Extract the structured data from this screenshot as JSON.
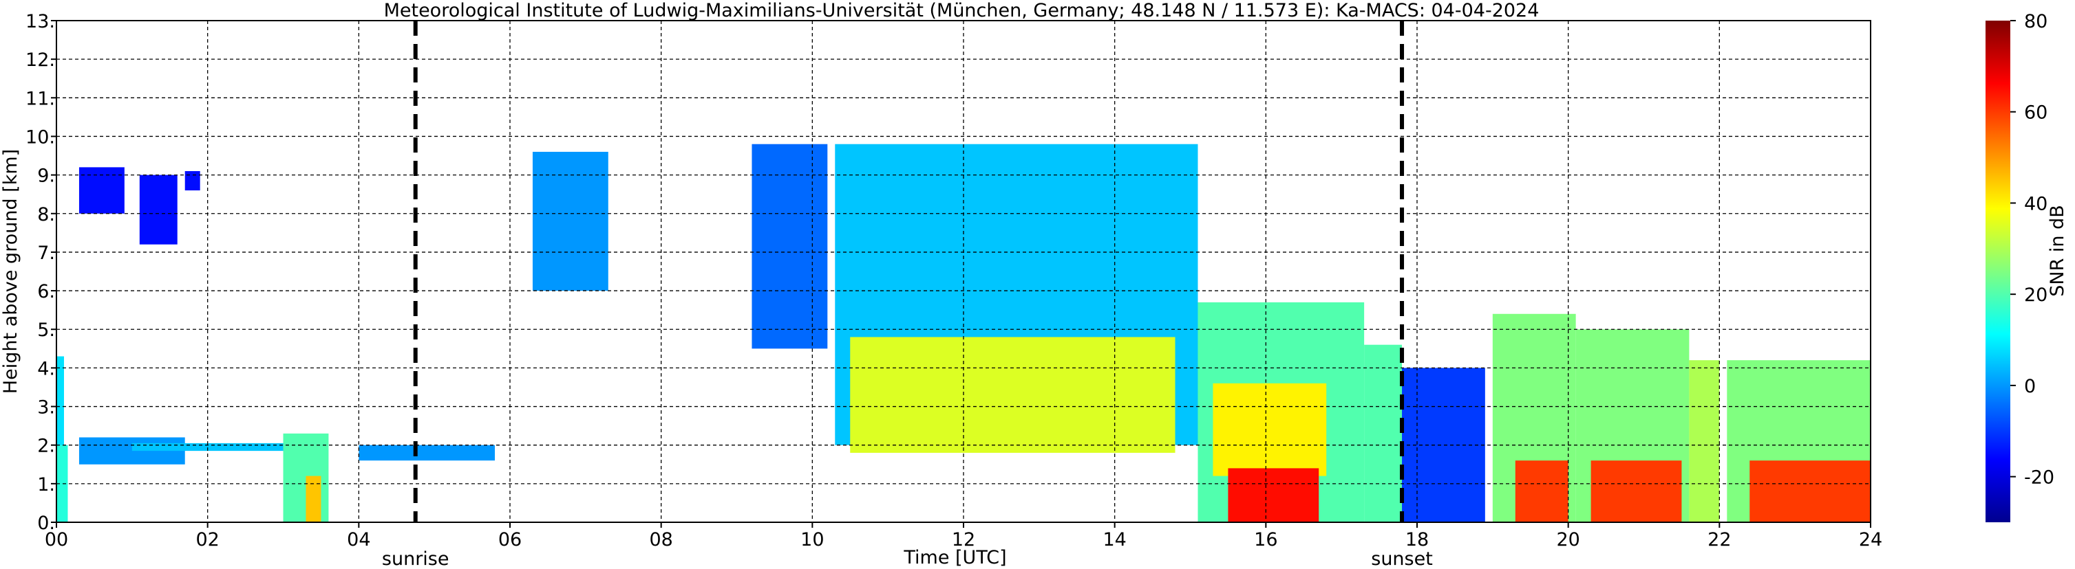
{
  "chart_data": {
    "type": "heatmap",
    "title": "Meteorological Institute of Ludwig-Maximilians-Universität (München, Germany; 48.148 N / 11.573 E):    Ka-MACS: 04-04-2024",
    "xlabel": "Time [UTC]",
    "ylabel": "Height above ground [km]",
    "x_unit": "hours UTC",
    "xlim": [
      0,
      24
    ],
    "ylim": [
      0,
      13
    ],
    "x_ticks": [
      0,
      2,
      4,
      6,
      8,
      10,
      12,
      14,
      16,
      18,
      20,
      22,
      24
    ],
    "x_tick_labels": [
      "00",
      "02",
      "04",
      "06",
      "08",
      "10",
      "12",
      "14",
      "16",
      "18",
      "20",
      "22",
      "24"
    ],
    "y_ticks": [
      0,
      1,
      2,
      3,
      4,
      5,
      6,
      7,
      8,
      9,
      10,
      11,
      12,
      13
    ],
    "y_tick_labels": [
      "0.",
      "1.",
      "2.",
      "3.",
      "4.",
      "5.",
      "6.",
      "7.",
      "8.",
      "9.",
      "10.",
      "11.",
      "12.",
      "13."
    ],
    "grid": true,
    "grid_style": "dashed",
    "annotations": [
      {
        "label": "sunrise",
        "x": 4.75
      },
      {
        "label": "sunset",
        "x": 17.8
      }
    ],
    "colorbar": {
      "label": "SNR in dB",
      "range": [
        -30,
        80
      ],
      "ticks": [
        -20,
        0,
        20,
        40,
        60,
        80
      ],
      "colormap": [
        "#00008f",
        "#0000ff",
        "#0080ff",
        "#00ffff",
        "#80ff80",
        "#ffff00",
        "#ff8000",
        "#ff0000",
        "#800000"
      ]
    },
    "cells": [
      {
        "t0": 0.0,
        "t1": 0.1,
        "h0": 0.0,
        "h1": 4.3,
        "snr": 8
      },
      {
        "t0": 0.0,
        "t1": 0.15,
        "h0": 0.0,
        "h1": 2.0,
        "snr": 15
      },
      {
        "t0": 0.3,
        "t1": 1.7,
        "h0": 1.5,
        "h1": 2.2,
        "snr": 0
      },
      {
        "t0": 1.0,
        "t1": 3.0,
        "h0": 1.85,
        "h1": 2.05,
        "snr": 5
      },
      {
        "t0": 3.0,
        "t1": 3.6,
        "h0": 0.0,
        "h1": 2.3,
        "snr": 20
      },
      {
        "t0": 3.3,
        "t1": 3.5,
        "h0": 0.0,
        "h1": 1.2,
        "snr": 45
      },
      {
        "t0": 0.3,
        "t1": 0.9,
        "h0": 8.0,
        "h1": 9.2,
        "snr": -15
      },
      {
        "t0": 1.1,
        "t1": 1.6,
        "h0": 7.2,
        "h1": 9.0,
        "snr": -15
      },
      {
        "t0": 1.7,
        "t1": 1.9,
        "h0": 8.6,
        "h1": 9.1,
        "snr": -15
      },
      {
        "t0": 4.0,
        "t1": 5.8,
        "h0": 1.6,
        "h1": 2.0,
        "snr": 0
      },
      {
        "t0": 6.3,
        "t1": 7.3,
        "h0": 6.0,
        "h1": 9.6,
        "snr": 0
      },
      {
        "t0": 9.2,
        "t1": 10.2,
        "h0": 4.5,
        "h1": 9.8,
        "snr": -5
      },
      {
        "t0": 10.3,
        "t1": 15.1,
        "h0": 2.0,
        "h1": 9.8,
        "snr": 5
      },
      {
        "t0": 10.5,
        "t1": 14.8,
        "h0": 1.8,
        "h1": 4.8,
        "snr": 35
      },
      {
        "t0": 15.1,
        "t1": 17.3,
        "h0": 0.0,
        "h1": 5.7,
        "snr": 20
      },
      {
        "t0": 15.3,
        "t1": 16.8,
        "h0": 1.2,
        "h1": 3.6,
        "snr": 40
      },
      {
        "t0": 15.5,
        "t1": 16.7,
        "h0": 0.0,
        "h1": 1.4,
        "snr": 65
      },
      {
        "t0": 17.3,
        "t1": 17.8,
        "h0": 0.0,
        "h1": 4.6,
        "snr": 20
      },
      {
        "t0": 17.8,
        "t1": 18.9,
        "h0": 0.0,
        "h1": 4.0,
        "snr": -10
      },
      {
        "t0": 19.0,
        "t1": 20.1,
        "h0": 0.0,
        "h1": 5.4,
        "snr": 25
      },
      {
        "t0": 19.3,
        "t1": 20.0,
        "h0": 0.0,
        "h1": 1.6,
        "snr": 60
      },
      {
        "t0": 20.1,
        "t1": 21.6,
        "h0": 0.0,
        "h1": 5.0,
        "snr": 25
      },
      {
        "t0": 20.3,
        "t1": 21.5,
        "h0": 0.0,
        "h1": 1.6,
        "snr": 60
      },
      {
        "t0": 21.6,
        "t1": 22.0,
        "h0": 0.0,
        "h1": 4.2,
        "snr": 30
      },
      {
        "t0": 22.1,
        "t1": 24.0,
        "h0": 0.0,
        "h1": 4.2,
        "snr": 25
      },
      {
        "t0": 22.4,
        "t1": 24.0,
        "h0": 0.0,
        "h1": 1.6,
        "snr": 60
      }
    ]
  }
}
